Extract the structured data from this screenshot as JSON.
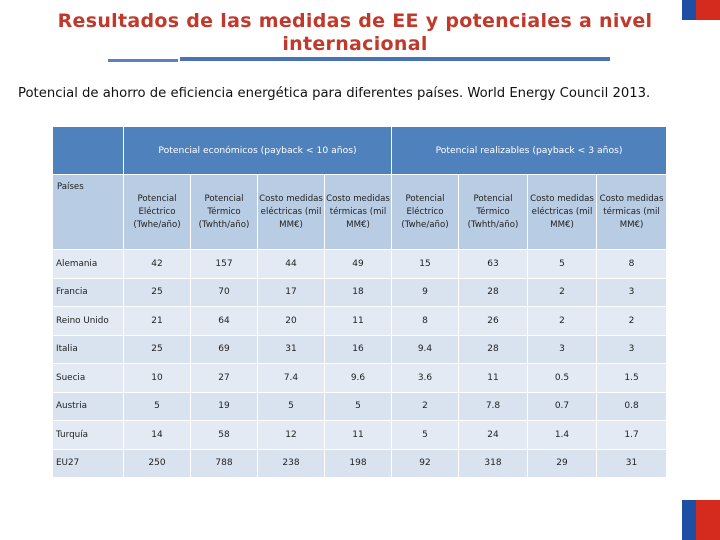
{
  "title": "Resultados de las medidas de EE y potenciales a nivel internacional",
  "subtitle": "Potencial de ahorro de eficiencia energética para diferentes países. World Energy Council 2013.",
  "table": {
    "group_headers": [
      "Potencial económicos (payback < 10 años)",
      "Potencial realizables (payback < 3 años)"
    ],
    "columns": [
      "Países",
      "Potencial Eléctrico (Twhe/año)",
      "Potencial Térmico (Twhth/año)",
      "Costo medidas eléctricas (mil MM€)",
      "Costo medidas térmicas (mil MM€)",
      "Potencial Eléctrico (Twhe/año)",
      "Potencial Térmico (Twhth/año)",
      "Costo medidas eléctricas (mil MM€)",
      "Costo medidas térmicas (mil MM€)"
    ],
    "rows": [
      [
        "Alemania",
        "42",
        "157",
        "44",
        "49",
        "15",
        "63",
        "5",
        "8"
      ],
      [
        "Francia",
        "25",
        "70",
        "17",
        "18",
        "9",
        "28",
        "2",
        "3"
      ],
      [
        "Reino Unido",
        "21",
        "64",
        "20",
        "11",
        "8",
        "26",
        "2",
        "2"
      ],
      [
        "Italia",
        "25",
        "69",
        "31",
        "16",
        "9.4",
        "28",
        "3",
        "3"
      ],
      [
        "Suecia",
        "10",
        "27",
        "7.4",
        "9.6",
        "3.6",
        "11",
        "0.5",
        "1.5"
      ],
      [
        "Austria",
        "5",
        "19",
        "5",
        "5",
        "2",
        "7.8",
        "0.7",
        "0.8"
      ],
      [
        "Turquía",
        "14",
        "58",
        "12",
        "11",
        "5",
        "24",
        "1.4",
        "1.7"
      ],
      [
        "EU27",
        "250",
        "788",
        "238",
        "198",
        "92",
        "318",
        "29",
        "31"
      ]
    ]
  }
}
